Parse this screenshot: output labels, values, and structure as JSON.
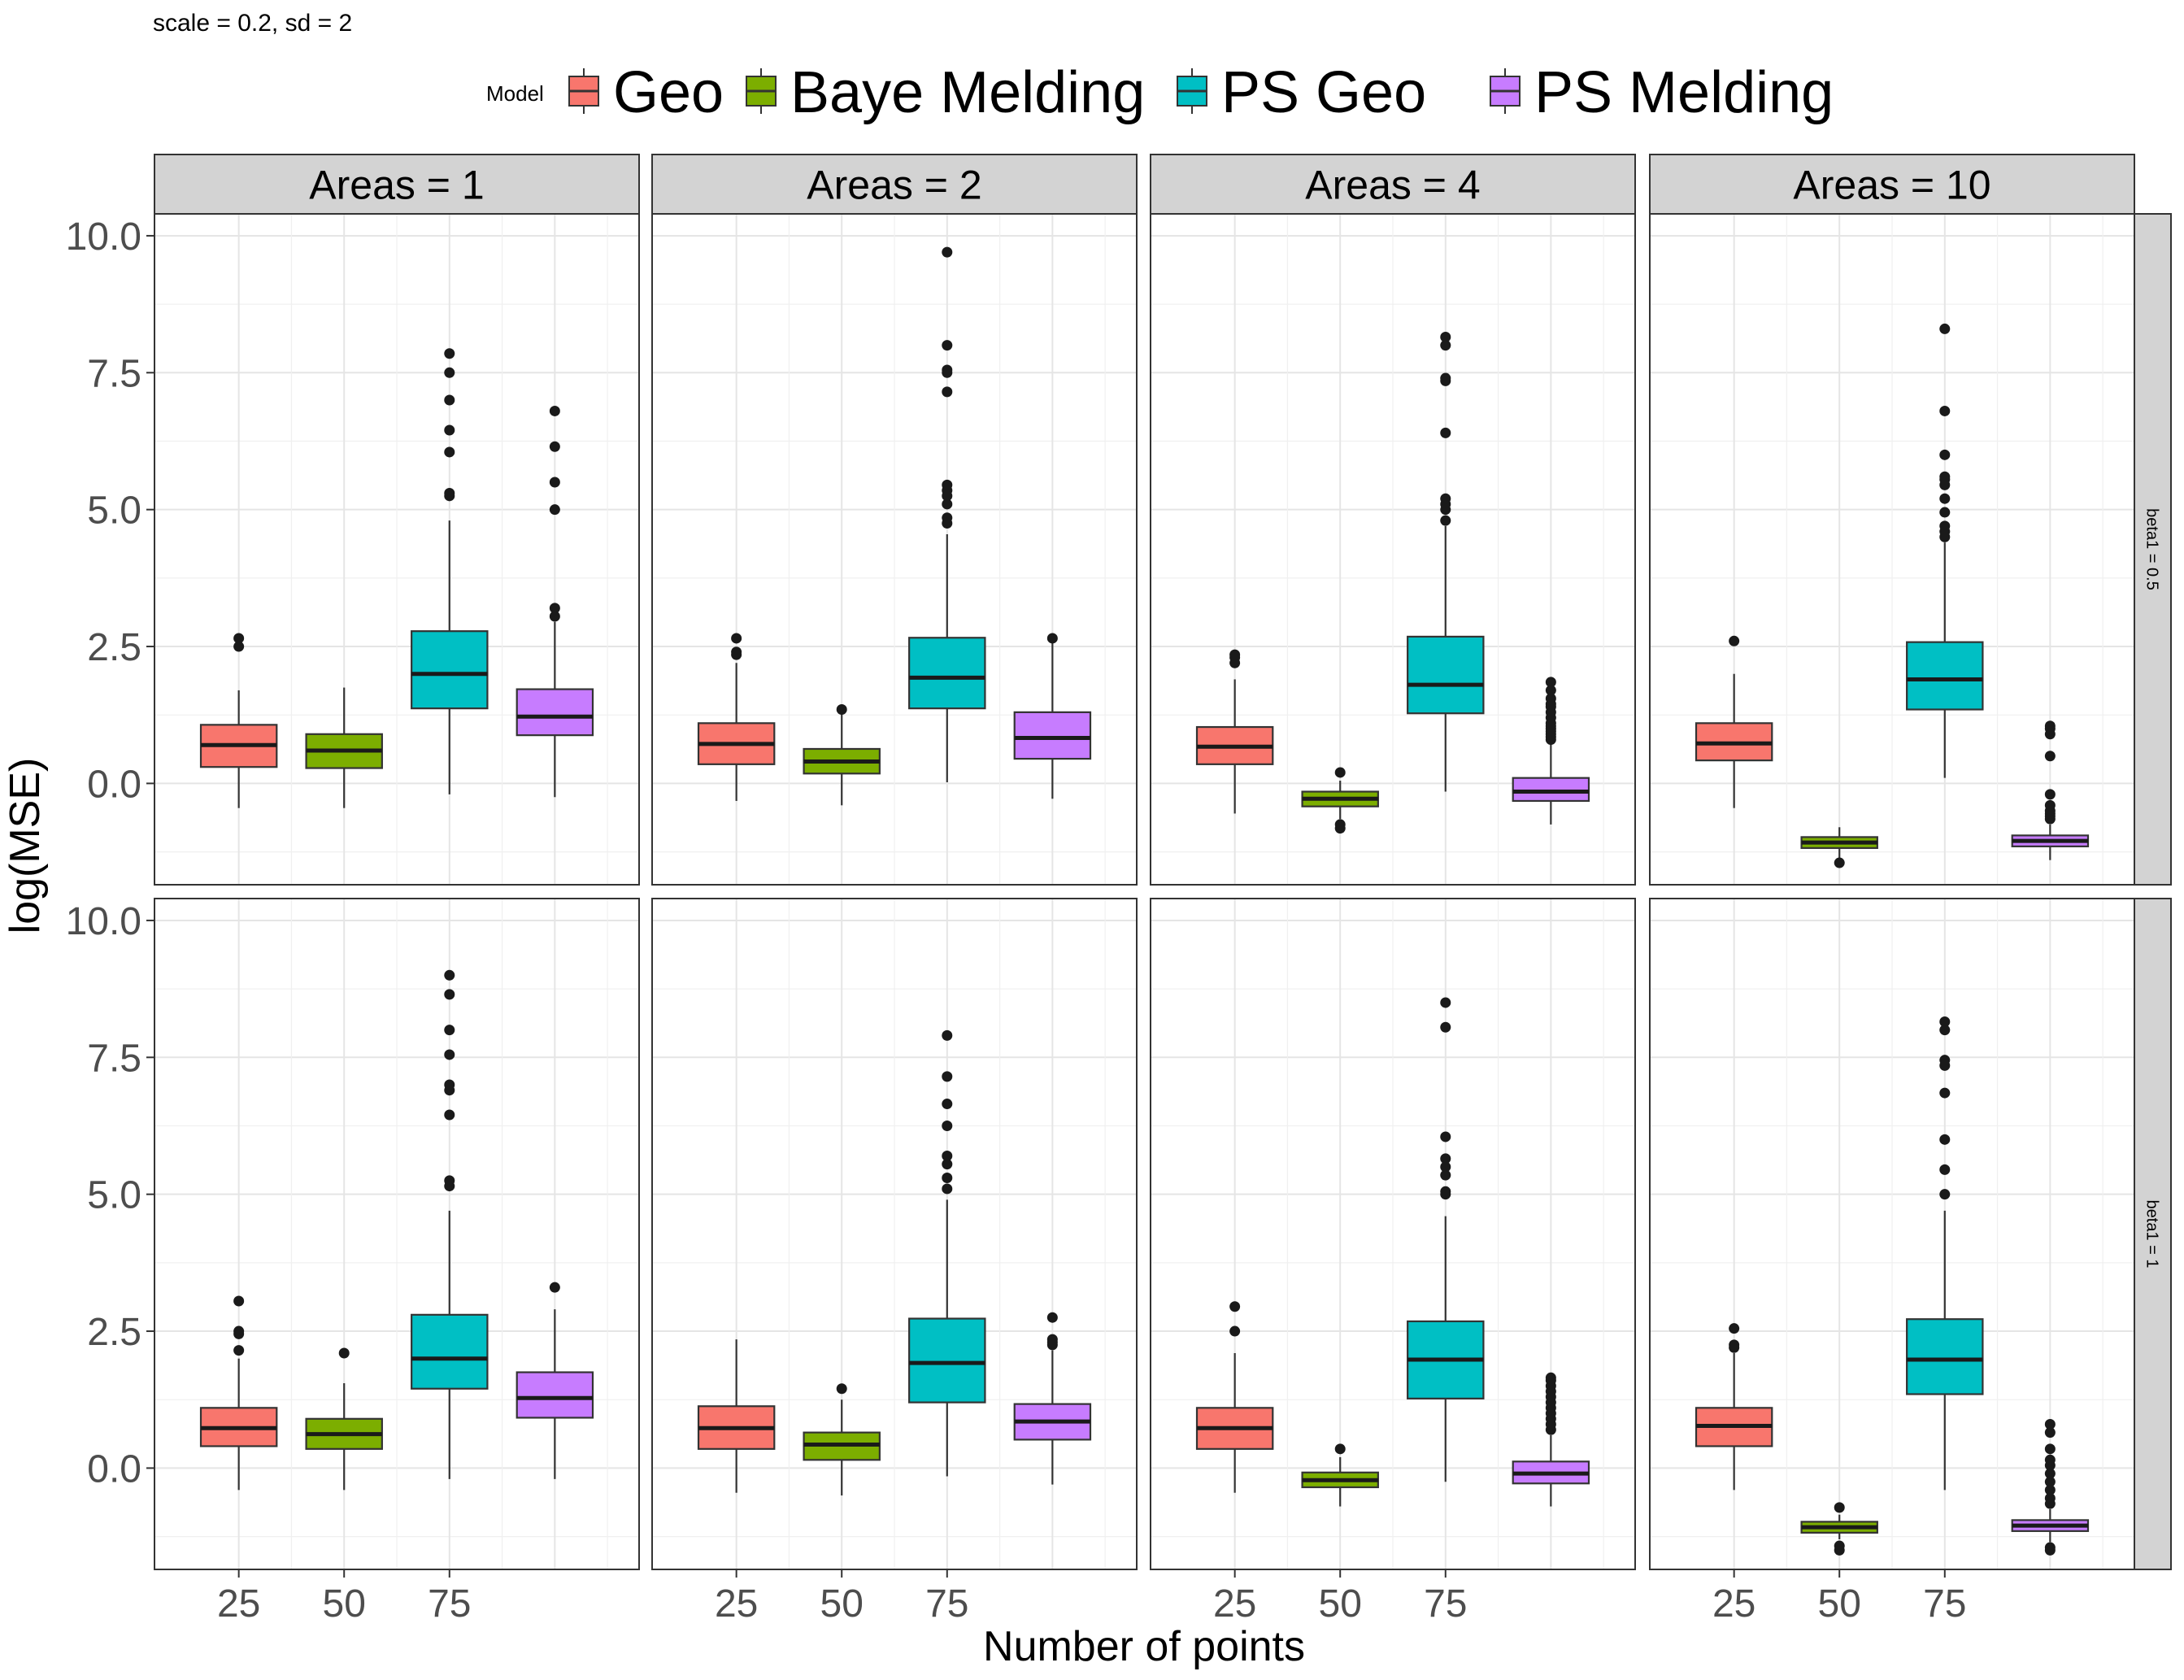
{
  "chart_data": {
    "type": "boxplot",
    "subtitle": "scale = 0.2, sd  = 2",
    "xlabel": "Number of points",
    "ylabel": "log(MSE)",
    "ylim": [
      -1.85,
      10.4
    ],
    "yticks": [
      "0.0",
      "2.5",
      "5.0",
      "7.5",
      "10.0"
    ],
    "ytick_values": [
      0,
      2.5,
      5,
      7.5,
      10
    ],
    "xticks": [
      "25",
      "50",
      "75"
    ],
    "grid": true,
    "legend": {
      "title": "Model",
      "placement": "top",
      "items": [
        {
          "name": "Geo",
          "color": "#F8766D"
        },
        {
          "name": "Baye Melding",
          "color": "#7CAE00"
        },
        {
          "name": "PS Geo",
          "color": "#00BFC4"
        },
        {
          "name": "PS Melding",
          "color": "#C77CFF"
        }
      ]
    },
    "facet_cols": [
      "Areas = 1",
      "Areas = 2",
      "Areas = 4",
      "Areas = 10"
    ],
    "facet_rows": [
      "beta1 = 0.5",
      "beta1 = 1"
    ],
    "panels": [
      {
        "row": 0,
        "col": 0,
        "boxes": [
          {
            "series": "Geo",
            "whisker_low": -0.45,
            "q1": 0.3,
            "median": 0.7,
            "q3": 1.07,
            "whisker_high": 1.7,
            "outliers": [
              2.5,
              2.65
            ]
          },
          {
            "series": "Baye Melding",
            "whisker_low": -0.45,
            "q1": 0.28,
            "median": 0.6,
            "q3": 0.9,
            "whisker_high": 1.75,
            "outliers": []
          },
          {
            "series": "PS Geo",
            "whisker_low": -0.2,
            "q1": 1.37,
            "median": 2.0,
            "q3": 2.78,
            "whisker_high": 4.8,
            "outliers": [
              5.25,
              5.3,
              6.05,
              6.45,
              7.0,
              7.5,
              7.85
            ]
          },
          {
            "series": "PS Melding",
            "whisker_low": -0.25,
            "q1": 0.88,
            "median": 1.22,
            "q3": 1.72,
            "whisker_high": 2.95,
            "outliers": [
              3.05,
              3.2,
              5.0,
              5.5,
              6.15,
              6.8
            ]
          }
        ]
      },
      {
        "row": 0,
        "col": 1,
        "boxes": [
          {
            "series": "Geo",
            "whisker_low": -0.32,
            "q1": 0.35,
            "median": 0.72,
            "q3": 1.1,
            "whisker_high": 2.2,
            "outliers": [
              2.35,
              2.4,
              2.65
            ]
          },
          {
            "series": "Baye Melding",
            "whisker_low": -0.4,
            "q1": 0.18,
            "median": 0.4,
            "q3": 0.63,
            "whisker_high": 1.3,
            "outliers": [
              1.35
            ]
          },
          {
            "series": "PS Geo",
            "whisker_low": 0.02,
            "q1": 1.37,
            "median": 1.93,
            "q3": 2.66,
            "whisker_high": 4.55,
            "outliers": [
              4.75,
              4.85,
              5.1,
              5.25,
              5.35,
              5.45,
              7.15,
              7.5,
              7.55,
              8.0,
              9.7
            ]
          },
          {
            "series": "PS Melding",
            "whisker_low": -0.28,
            "q1": 0.45,
            "median": 0.83,
            "q3": 1.3,
            "whisker_high": 2.6,
            "outliers": [
              2.65
            ]
          }
        ]
      },
      {
        "row": 0,
        "col": 2,
        "boxes": [
          {
            "series": "Geo",
            "whisker_low": -0.55,
            "q1": 0.35,
            "median": 0.67,
            "q3": 1.03,
            "whisker_high": 1.9,
            "outliers": [
              2.2,
              2.3,
              2.35
            ]
          },
          {
            "series": "Baye Melding",
            "whisker_low": -0.65,
            "q1": -0.42,
            "median": -0.28,
            "q3": -0.15,
            "whisker_high": 0.05,
            "outliers": [
              0.2,
              -0.75,
              -0.82
            ]
          },
          {
            "series": "PS Geo",
            "whisker_low": -0.15,
            "q1": 1.28,
            "median": 1.8,
            "q3": 2.68,
            "whisker_high": 4.7,
            "outliers": [
              4.8,
              5.0,
              5.1,
              5.2,
              6.4,
              7.35,
              7.4,
              8.0,
              8.15
            ]
          },
          {
            "series": "PS Melding",
            "whisker_low": -0.75,
            "q1": -0.32,
            "median": -0.15,
            "q3": 0.1,
            "whisker_high": 0.75,
            "outliers": [
              0.8,
              0.85,
              0.9,
              0.95,
              1.0,
              1.05,
              1.1,
              1.2,
              1.3,
              1.4,
              1.45,
              1.55,
              1.7,
              1.85
            ]
          }
        ]
      },
      {
        "row": 0,
        "col": 3,
        "boxes": [
          {
            "series": "Geo",
            "whisker_low": -0.45,
            "q1": 0.42,
            "median": 0.73,
            "q3": 1.1,
            "whisker_high": 2.0,
            "outliers": [
              2.6
            ]
          },
          {
            "series": "Baye Melding",
            "whisker_low": -1.4,
            "q1": -1.18,
            "median": -1.08,
            "q3": -0.98,
            "whisker_high": -0.8,
            "outliers": [
              -1.45
            ]
          },
          {
            "series": "PS Geo",
            "whisker_low": 0.1,
            "q1": 1.35,
            "median": 1.9,
            "q3": 2.58,
            "whisker_high": 4.4,
            "outliers": [
              4.5,
              4.6,
              4.7,
              4.95,
              5.2,
              5.45,
              5.55,
              5.6,
              6.0,
              6.8,
              8.3
            ]
          },
          {
            "series": "PS Melding",
            "whisker_low": -1.4,
            "q1": -1.15,
            "median": -1.05,
            "q3": -0.95,
            "whisker_high": -0.75,
            "outliers": [
              -0.65,
              -0.6,
              -0.55,
              -0.5,
              -0.4,
              -0.2,
              0.5,
              0.9,
              1.0,
              1.05
            ]
          }
        ]
      },
      {
        "row": 1,
        "col": 0,
        "boxes": [
          {
            "series": "Geo",
            "whisker_low": -0.4,
            "q1": 0.4,
            "median": 0.73,
            "q3": 1.1,
            "whisker_high": 2.0,
            "outliers": [
              2.15,
              2.45,
              2.5,
              3.05
            ]
          },
          {
            "series": "Baye Melding",
            "whisker_low": -0.4,
            "q1": 0.35,
            "median": 0.62,
            "q3": 0.9,
            "whisker_high": 1.55,
            "outliers": [
              2.1
            ]
          },
          {
            "series": "PS Geo",
            "whisker_low": -0.2,
            "q1": 1.45,
            "median": 2.0,
            "q3": 2.8,
            "whisker_high": 4.7,
            "outliers": [
              5.15,
              5.25,
              6.45,
              6.9,
              7.0,
              7.55,
              8.0,
              8.65,
              9.0
            ]
          },
          {
            "series": "PS Melding",
            "whisker_low": -0.2,
            "q1": 0.92,
            "median": 1.28,
            "q3": 1.75,
            "whisker_high": 2.9,
            "outliers": [
              3.3
            ]
          }
        ]
      },
      {
        "row": 1,
        "col": 1,
        "boxes": [
          {
            "series": "Geo",
            "whisker_low": -0.45,
            "q1": 0.35,
            "median": 0.73,
            "q3": 1.13,
            "whisker_high": 2.35,
            "outliers": []
          },
          {
            "series": "Baye Melding",
            "whisker_low": -0.5,
            "q1": 0.15,
            "median": 0.43,
            "q3": 0.65,
            "whisker_high": 1.25,
            "outliers": [
              1.45
            ]
          },
          {
            "series": "PS Geo",
            "whisker_low": -0.15,
            "q1": 1.2,
            "median": 1.92,
            "q3": 2.73,
            "whisker_high": 4.9,
            "outliers": [
              5.1,
              5.3,
              5.55,
              5.7,
              6.25,
              6.65,
              7.15,
              7.9
            ]
          },
          {
            "series": "PS Melding",
            "whisker_low": -0.3,
            "q1": 0.52,
            "median": 0.85,
            "q3": 1.17,
            "whisker_high": 2.15,
            "outliers": [
              2.25,
              2.3,
              2.35,
              2.75
            ]
          }
        ]
      },
      {
        "row": 1,
        "col": 2,
        "boxes": [
          {
            "series": "Geo",
            "whisker_low": -0.45,
            "q1": 0.35,
            "median": 0.73,
            "q3": 1.1,
            "whisker_high": 2.1,
            "outliers": [
              2.5,
              2.95
            ]
          },
          {
            "series": "Baye Melding",
            "whisker_low": -0.7,
            "q1": -0.35,
            "median": -0.22,
            "q3": -0.08,
            "whisker_high": 0.2,
            "outliers": [
              0.35
            ]
          },
          {
            "series": "PS Geo",
            "whisker_low": -0.25,
            "q1": 1.27,
            "median": 1.98,
            "q3": 2.68,
            "whisker_high": 4.6,
            "outliers": [
              5.0,
              5.05,
              5.35,
              5.5,
              5.65,
              6.05,
              8.05,
              8.5
            ]
          },
          {
            "series": "PS Melding",
            "whisker_low": -0.7,
            "q1": -0.28,
            "median": -0.1,
            "q3": 0.12,
            "whisker_high": 0.6,
            "outliers": [
              0.7,
              0.8,
              0.9,
              1.0,
              1.1,
              1.2,
              1.3,
              1.4,
              1.5,
              1.6,
              1.65
            ]
          }
        ]
      },
      {
        "row": 1,
        "col": 3,
        "boxes": [
          {
            "series": "Geo",
            "whisker_low": -0.4,
            "q1": 0.4,
            "median": 0.77,
            "q3": 1.1,
            "whisker_high": 2.1,
            "outliers": [
              2.2,
              2.25,
              2.55
            ]
          },
          {
            "series": "Baye Melding",
            "whisker_low": -1.3,
            "q1": -1.18,
            "median": -1.08,
            "q3": -0.98,
            "whisker_high": -0.85,
            "outliers": [
              -0.72,
              -1.42,
              -1.5
            ]
          },
          {
            "series": "PS Geo",
            "whisker_low": -0.4,
            "q1": 1.35,
            "median": 1.98,
            "q3": 2.72,
            "whisker_high": 4.7,
            "outliers": [
              5.0,
              5.45,
              6.0,
              6.85,
              7.35,
              7.45,
              8.0,
              8.15
            ]
          },
          {
            "series": "PS Melding",
            "whisker_low": -1.35,
            "q1": -1.15,
            "median": -1.05,
            "q3": -0.95,
            "whisker_high": -0.75,
            "outliers": [
              -0.65,
              -0.55,
              -0.4,
              -0.25,
              -0.1,
              0.05,
              0.15,
              0.35,
              0.65,
              0.8,
              -1.45,
              -1.5
            ]
          }
        ]
      }
    ]
  }
}
